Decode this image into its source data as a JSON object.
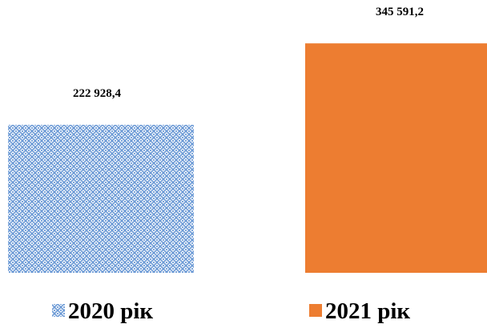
{
  "chart_data": {
    "type": "bar",
    "categories": [
      "2020 рік",
      "2021 рік"
    ],
    "values": [
      222928.4,
      345591.2
    ],
    "data_labels": [
      "222 928,4",
      "345 591,2"
    ],
    "ylim": [
      0,
      400000
    ],
    "grid": false,
    "axes_visible": false,
    "legend_position": "bottom",
    "series_styles": [
      {
        "pattern": "diamond-lattice",
        "fill": "#6d9bd6",
        "pattern_bg": "#ffffff"
      },
      {
        "pattern": "solid",
        "fill": "#ed7d31"
      }
    ]
  },
  "legend": {
    "items": [
      {
        "label": "2020 рік"
      },
      {
        "label": "2021 рік"
      }
    ]
  }
}
